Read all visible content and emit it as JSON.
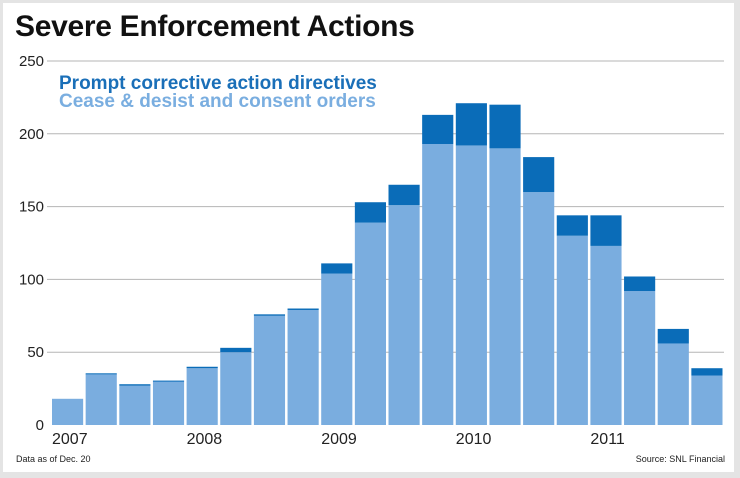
{
  "chart_data": {
    "type": "bar",
    "stacked": true,
    "title": "Severe Enforcement Actions",
    "xlabel": "",
    "ylabel": "",
    "ylim": [
      0,
      250
    ],
    "yticks": [
      0,
      50,
      100,
      150,
      200,
      250
    ],
    "grid": true,
    "legend_position": "top-left",
    "x_tick_labels": [
      "2007",
      "2008",
      "2009",
      "2010",
      "2011"
    ],
    "x_tick_bar_index": [
      0,
      4,
      8,
      12,
      16
    ],
    "categories": [
      "2007 Q1",
      "2007 Q2",
      "2007 Q3",
      "2007 Q4",
      "2008 Q1",
      "2008 Q2",
      "2008 Q3",
      "2008 Q4",
      "2009 Q1",
      "2009 Q2",
      "2009 Q3",
      "2009 Q4",
      "2010 Q1",
      "2010 Q2",
      "2010 Q3",
      "2010 Q4",
      "2011 Q1",
      "2011 Q2",
      "2011 Q3",
      "2011 Q4"
    ],
    "series": [
      {
        "name": "Cease & desist and consent orders",
        "color": "#7aaddf",
        "values": [
          18,
          35,
          27,
          30,
          39,
          50,
          75,
          79,
          104,
          139,
          151,
          193,
          192,
          190,
          160,
          130,
          123,
          92,
          56,
          34
        ]
      },
      {
        "name": "Prompt corrective action directives",
        "color": "#0a6cb8",
        "values": [
          0,
          0.5,
          1,
          0.5,
          1,
          3,
          1,
          1,
          7,
          14,
          14,
          20,
          29,
          30,
          24,
          14,
          21,
          10,
          10,
          5
        ]
      }
    ]
  },
  "footer": {
    "note": "Data as of Dec. 20",
    "source": "Source: SNL Financial"
  }
}
